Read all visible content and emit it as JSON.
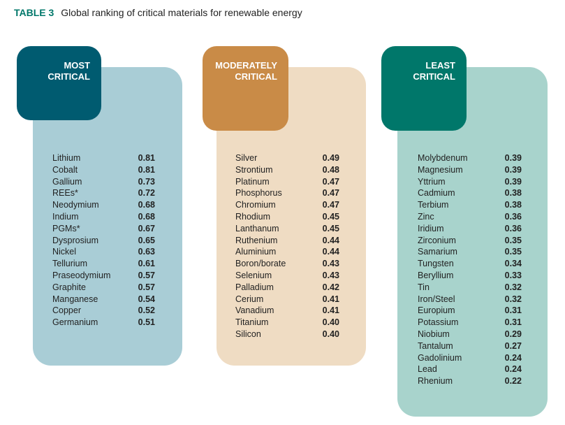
{
  "title": {
    "label": "TABLE 3",
    "text": "Global ranking of critical materials for renewable energy"
  },
  "columns": [
    {
      "header_line1": "MOST",
      "header_line2": "CRITICAL",
      "header_color": "#005b70",
      "panel_color": "#a9cdd6",
      "items": [
        {
          "name": "Lithium",
          "value": "0.81"
        },
        {
          "name": "Cobalt",
          "value": "0.81"
        },
        {
          "name": "Gallium",
          "value": "0.73"
        },
        {
          "name": "REEs*",
          "value": "0.72"
        },
        {
          "name": "Neodymium",
          "value": "0.68"
        },
        {
          "name": "Indium",
          "value": "0.68"
        },
        {
          "name": "PGMs*",
          "value": "0.67"
        },
        {
          "name": "Dysprosium",
          "value": "0.65"
        },
        {
          "name": "Nickel",
          "value": "0.63"
        },
        {
          "name": "Tellurium",
          "value": "0.61"
        },
        {
          "name": "Praseodymium",
          "value": "0.57"
        },
        {
          "name": "Graphite",
          "value": "0.57"
        },
        {
          "name": "Manganese",
          "value": "0.54"
        },
        {
          "name": "Copper",
          "value": "0.52"
        },
        {
          "name": "Germanium",
          "value": "0.51"
        }
      ]
    },
    {
      "header_line1": "MODERATELY",
      "header_line2": "CRITICAL",
      "header_color": "#c98b47",
      "panel_color": "#efdcc3",
      "items": [
        {
          "name": "Silver",
          "value": "0.49"
        },
        {
          "name": "Strontium",
          "value": "0.48"
        },
        {
          "name": "Platinum",
          "value": "0.47"
        },
        {
          "name": "Phosphorus",
          "value": "0.47"
        },
        {
          "name": "Chromium",
          "value": "0.47"
        },
        {
          "name": "Rhodium",
          "value": "0.45"
        },
        {
          "name": "Lanthanum",
          "value": "0.45"
        },
        {
          "name": "Ruthenium",
          "value": "0.44"
        },
        {
          "name": "Aluminium",
          "value": "0.44"
        },
        {
          "name": "Boron/borate",
          "value": "0.43"
        },
        {
          "name": "Selenium",
          "value": "0.43"
        },
        {
          "name": "Palladium",
          "value": "0.42"
        },
        {
          "name": "Cerium",
          "value": "0.41"
        },
        {
          "name": "Vanadium",
          "value": "0.41"
        },
        {
          "name": "Titanium",
          "value": "0.40"
        },
        {
          "name": "Silicon",
          "value": "0.40"
        }
      ]
    },
    {
      "header_line1": "LEAST",
      "header_line2": "CRITICAL",
      "header_color": "#00776a",
      "panel_color": "#a8d3cc",
      "items": [
        {
          "name": "Molybdenum",
          "value": "0.39"
        },
        {
          "name": "Magnesium",
          "value": "0.39"
        },
        {
          "name": "Yttrium",
          "value": "0.39"
        },
        {
          "name": "Cadmium",
          "value": "0.38"
        },
        {
          "name": "Terbium",
          "value": "0.38"
        },
        {
          "name": "Zinc",
          "value": "0.36"
        },
        {
          "name": "Iridium",
          "value": "0.36"
        },
        {
          "name": "Zirconium",
          "value": "0.35"
        },
        {
          "name": "Samarium",
          "value": "0.35"
        },
        {
          "name": "Tungsten",
          "value": "0.34"
        },
        {
          "name": "Beryllium",
          "value": "0.33"
        },
        {
          "name": "Tin",
          "value": "0.32"
        },
        {
          "name": "Iron/Steel",
          "value": "0.32"
        },
        {
          "name": "Europium",
          "value": "0.31"
        },
        {
          "name": "Potassium",
          "value": "0.31"
        },
        {
          "name": "Niobium",
          "value": "0.29"
        },
        {
          "name": "Tantalum",
          "value": "0.27"
        },
        {
          "name": "Gadolinium",
          "value": "0.24"
        },
        {
          "name": "Lead",
          "value": "0.24"
        },
        {
          "name": "Rhenium",
          "value": "0.22"
        }
      ]
    }
  ]
}
